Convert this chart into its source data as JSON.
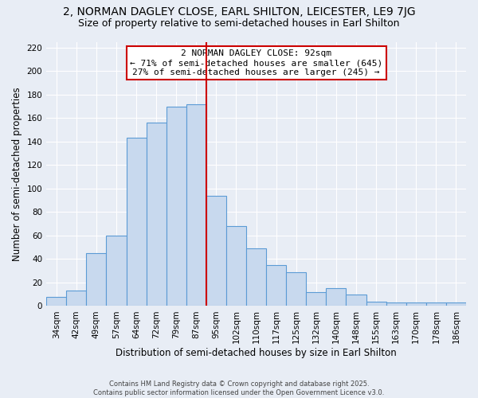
{
  "title": "2, NORMAN DAGLEY CLOSE, EARL SHILTON, LEICESTER, LE9 7JG",
  "subtitle": "Size of property relative to semi-detached houses in Earl Shilton",
  "xlabel": "Distribution of semi-detached houses by size in Earl Shilton",
  "ylabel": "Number of semi-detached properties",
  "categories": [
    "34sqm",
    "42sqm",
    "49sqm",
    "57sqm",
    "64sqm",
    "72sqm",
    "79sqm",
    "87sqm",
    "95sqm",
    "102sqm",
    "110sqm",
    "117sqm",
    "125sqm",
    "132sqm",
    "140sqm",
    "148sqm",
    "155sqm",
    "163sqm",
    "170sqm",
    "178sqm",
    "186sqm"
  ],
  "values": [
    8,
    13,
    45,
    60,
    143,
    156,
    170,
    172,
    94,
    68,
    49,
    35,
    29,
    12,
    15,
    10,
    4,
    3,
    3,
    3,
    3
  ],
  "bar_color": "#c8d9ee",
  "bar_edge_color": "#5b9bd5",
  "vline_color": "#cc0000",
  "annotation_box_text": "2 NORMAN DAGLEY CLOSE: 92sqm\n← 71% of semi-detached houses are smaller (645)\n27% of semi-detached houses are larger (245) →",
  "annotation_box_color": "#cc0000",
  "annotation_box_fill": "#ffffff",
  "ylim": [
    0,
    225
  ],
  "yticks": [
    0,
    20,
    40,
    60,
    80,
    100,
    120,
    140,
    160,
    180,
    200,
    220
  ],
  "background_color": "#e8edf5",
  "grid_color": "#ffffff",
  "footer": "Contains HM Land Registry data © Crown copyright and database right 2025.\nContains public sector information licensed under the Open Government Licence v3.0.",
  "title_fontsize": 10,
  "subtitle_fontsize": 9,
  "xlabel_fontsize": 8.5,
  "ylabel_fontsize": 8.5,
  "annot_fontsize": 8,
  "tick_fontsize": 7.5,
  "footer_fontsize": 6
}
